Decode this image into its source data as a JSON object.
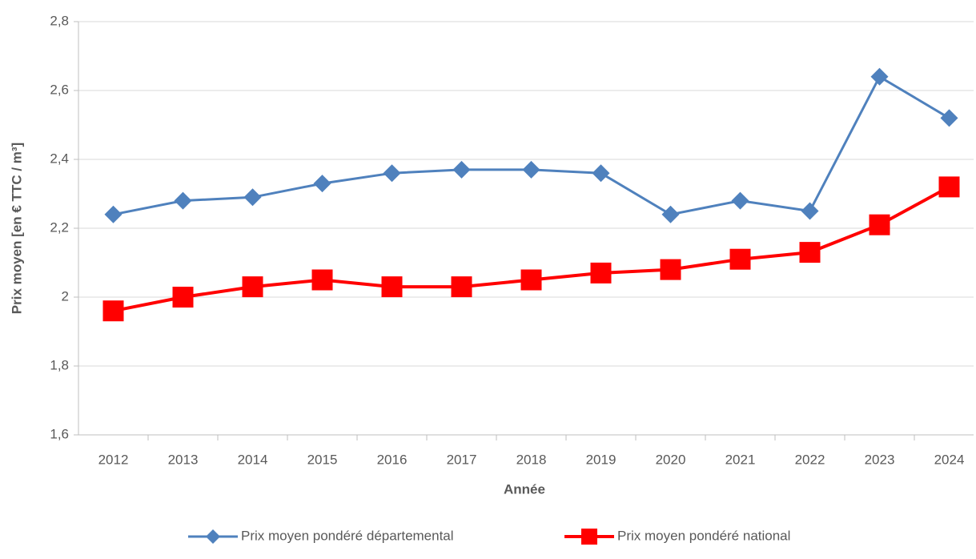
{
  "chart_data": {
    "type": "line",
    "x_label": "Année",
    "y_label": "Prix moyen [en € TTC / m³]",
    "categories": [
      "2012",
      "2013",
      "2014",
      "2015",
      "2016",
      "2017",
      "2018",
      "2019",
      "2020",
      "2021",
      "2022",
      "2023",
      "2024"
    ],
    "series": [
      {
        "name": "Prix moyen pondéré départemental",
        "color": "#4f81bd",
        "marker": "diamond",
        "values": [
          2.24,
          2.28,
          2.29,
          2.33,
          2.36,
          2.37,
          2.37,
          2.36,
          2.24,
          2.28,
          2.25,
          2.64,
          2.52
        ]
      },
      {
        "name": "Prix moyen pondéré national",
        "color": "#ff0000",
        "marker": "square",
        "values": [
          1.96,
          2.0,
          2.03,
          2.05,
          2.03,
          2.03,
          2.05,
          2.07,
          2.08,
          2.11,
          2.13,
          2.21,
          2.32
        ]
      }
    ],
    "ylim": [
      1.6,
      2.8
    ],
    "yticks": [
      {
        "value": 1.6,
        "label": "1,6"
      },
      {
        "value": 1.8,
        "label": "1,8"
      },
      2,
      {
        "value": 2.2,
        "label": "2,2"
      },
      {
        "value": 2.4,
        "label": "2,4"
      },
      {
        "value": 2.6,
        "label": "2,6"
      },
      {
        "value": 2.8,
        "label": "2,8"
      }
    ],
    "grid": true,
    "legend": "bottom"
  }
}
